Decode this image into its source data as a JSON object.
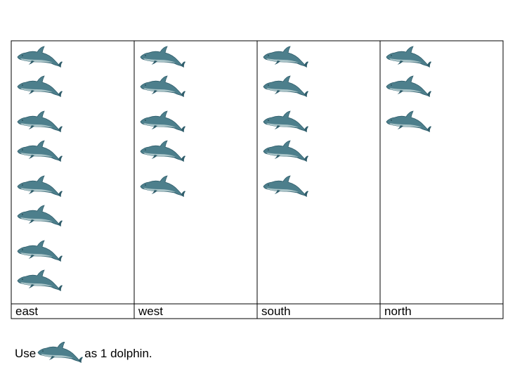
{
  "chart_data": {
    "type": "pictograph",
    "categories": [
      "east",
      "west",
      "south",
      "north"
    ],
    "values": [
      8,
      5,
      5,
      3
    ],
    "icon": "dolphin-icon",
    "unit_value": 1
  },
  "legend": {
    "prefix": "Use",
    "suffix": "as 1 dolphin."
  },
  "colors": {
    "dolphin_body": "#4d7f8c",
    "dolphin_dark": "#2f5d6b",
    "dolphin_belly": "#a9c4c8",
    "grid": "#000000"
  }
}
